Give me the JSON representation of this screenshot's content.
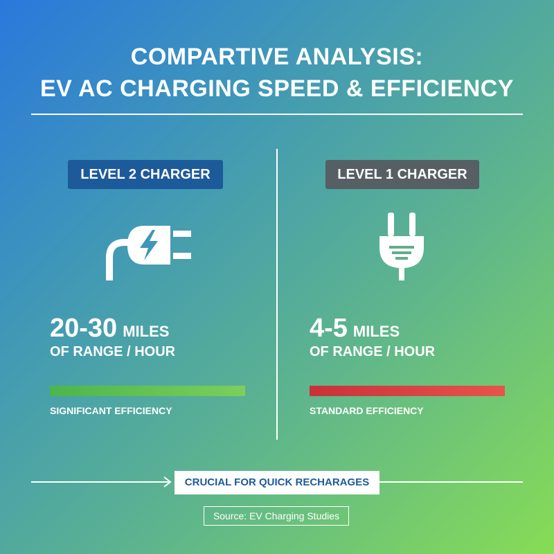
{
  "title": {
    "line1": "COMPARTIVE ANALYSIS:",
    "line2": "EV AC CHARGING SPEED & EFFICIENCY"
  },
  "level2": {
    "badge": "LEVEL 2 CHARGER",
    "icon": "charging-plug-icon",
    "value": "20-30",
    "unit": "MILES",
    "subtitle": "OF RANGE / HOUR",
    "efficiency_label": "SIGNIFICANT EFFICIENCY",
    "bar_color": "#5cbf50"
  },
  "level1": {
    "badge": "LEVEL 1 CHARGER",
    "icon": "electric-plug-icon",
    "value": "4-5",
    "unit": "MILES",
    "subtitle": "OF RANGE / HOUR",
    "efficiency_label": "STANDARD EFFICIENCY",
    "bar_color": "#d9403f"
  },
  "callout": "CRUCIAL FOR QUICK RECHARAGES",
  "source": "Source: EV Charging Studies",
  "colors": {
    "accent_blue": "#1d5a9a",
    "badge_gray": "#565f63",
    "gradient_start": "#2a78dc",
    "gradient_end": "#87dc55"
  }
}
